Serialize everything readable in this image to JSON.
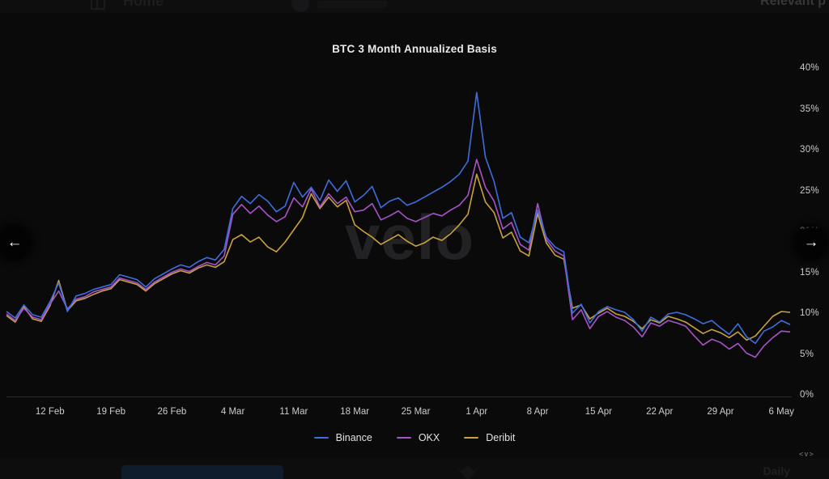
{
  "top_bar": {
    "home_label": "Home",
    "relevant_label": "Relevant p"
  },
  "watermark": "velo",
  "nav": {
    "left_arrow": "←",
    "right_arrow": "→"
  },
  "bottom": {
    "code_tag": "<v>",
    "daily_label": "Daily"
  },
  "chart_data": {
    "type": "line",
    "title": "BTC 3 Month Annualized Basis",
    "xlabel": "",
    "ylabel": "",
    "ylim": [
      0,
      40
    ],
    "y_ticks": [
      0,
      5,
      10,
      15,
      20,
      25,
      30,
      35,
      40
    ],
    "y_tick_suffix": "%",
    "x_tick_days": [
      5,
      12,
      19,
      26,
      33,
      40,
      47,
      54,
      61,
      68,
      75,
      82,
      89
    ],
    "x_tick_labels": [
      "12 Feb",
      "19 Feb",
      "26 Feb",
      "4 Mar",
      "11 Mar",
      "18 Mar",
      "25 Mar",
      "1 Apr",
      "8 Apr",
      "15 Apr",
      "22 Apr",
      "29 Apr",
      "6 May"
    ],
    "grid": false,
    "legend_position": "bottom-center",
    "background": "#0a0a0b",
    "series": [
      {
        "name": "Binance",
        "color": "#3d6edb",
        "values": [
          10.4,
          9.6,
          11.2,
          10.0,
          9.7,
          11.6,
          13.9,
          10.4,
          12.3,
          12.6,
          13.1,
          13.4,
          13.7,
          14.9,
          14.6,
          14.3,
          13.4,
          14.4,
          15.0,
          15.6,
          16.1,
          15.8,
          16.5,
          17.0,
          16.7,
          18.0,
          23.0,
          24.5,
          23.6,
          24.7,
          23.9,
          22.6,
          23.3,
          26.2,
          24.4,
          25.6,
          24.0,
          26.5,
          25.1,
          26.4,
          23.8,
          24.6,
          25.7,
          23.1,
          23.9,
          24.3,
          23.4,
          23.8,
          24.4,
          25.0,
          25.6,
          26.3,
          27.2,
          28.8,
          37.2,
          29.3,
          26.3,
          21.8,
          22.5,
          19.5,
          18.8,
          22.8,
          19.5,
          18.3,
          17.7,
          10.2,
          11.3,
          9.0,
          10.4,
          11.0,
          10.6,
          10.3,
          9.4,
          8.0,
          9.7,
          9.1,
          10.1,
          10.3,
          10.0,
          9.5,
          8.9,
          9.3,
          8.4,
          7.6,
          8.9,
          7.3,
          6.5,
          8.0,
          8.5,
          9.3,
          8.8
        ]
      },
      {
        "name": "OKX",
        "color": "#a952c9",
        "values": [
          10.1,
          9.3,
          10.8,
          9.7,
          9.4,
          11.3,
          12.9,
          10.7,
          11.9,
          12.2,
          12.8,
          13.1,
          13.4,
          14.5,
          14.2,
          13.9,
          13.1,
          14.0,
          14.6,
          15.2,
          15.6,
          15.3,
          15.9,
          16.4,
          16.1,
          17.2,
          22.3,
          23.5,
          22.4,
          23.3,
          22.2,
          21.4,
          22.0,
          24.3,
          23.2,
          25.4,
          23.2,
          24.8,
          23.6,
          24.4,
          22.6,
          22.8,
          23.6,
          21.6,
          22.1,
          22.7,
          21.8,
          21.4,
          21.9,
          22.4,
          22.1,
          22.8,
          23.4,
          24.6,
          29.0,
          25.6,
          23.9,
          20.5,
          21.3,
          18.6,
          17.9,
          23.6,
          19.2,
          17.8,
          17.2,
          9.4,
          10.6,
          8.3,
          9.8,
          10.4,
          9.7,
          9.3,
          8.5,
          7.3,
          9.0,
          8.6,
          9.3,
          9.0,
          8.6,
          7.4,
          6.3,
          7.0,
          6.6,
          5.8,
          6.5,
          5.3,
          4.8,
          6.2,
          7.2,
          8.0,
          7.9
        ]
      },
      {
        "name": "Deribit",
        "color": "#c9a23c",
        "values": [
          9.9,
          9.1,
          11.0,
          9.5,
          9.2,
          11.1,
          14.2,
          10.5,
          11.7,
          12.0,
          12.5,
          12.9,
          13.2,
          14.3,
          14.0,
          13.7,
          12.9,
          13.8,
          14.4,
          15.0,
          15.4,
          15.1,
          15.7,
          16.1,
          15.8,
          16.5,
          19.2,
          19.8,
          18.9,
          19.5,
          18.3,
          17.7,
          18.9,
          20.4,
          21.9,
          24.8,
          23.0,
          24.4,
          23.2,
          24.0,
          21.0,
          20.2,
          19.5,
          18.6,
          19.2,
          19.8,
          19.0,
          18.4,
          18.8,
          19.5,
          19.1,
          19.9,
          21.0,
          22.3,
          27.2,
          23.8,
          22.5,
          19.4,
          20.1,
          17.8,
          17.2,
          22.4,
          18.8,
          17.3,
          16.8,
          10.8,
          11.2,
          9.5,
          10.2,
          10.8,
          10.1,
          9.8,
          9.2,
          8.3,
          9.4,
          9.0,
          9.8,
          9.5,
          9.1,
          8.4,
          7.7,
          8.2,
          7.8,
          7.2,
          7.9,
          6.9,
          7.4,
          8.6,
          9.8,
          10.4,
          10.3
        ]
      }
    ]
  }
}
